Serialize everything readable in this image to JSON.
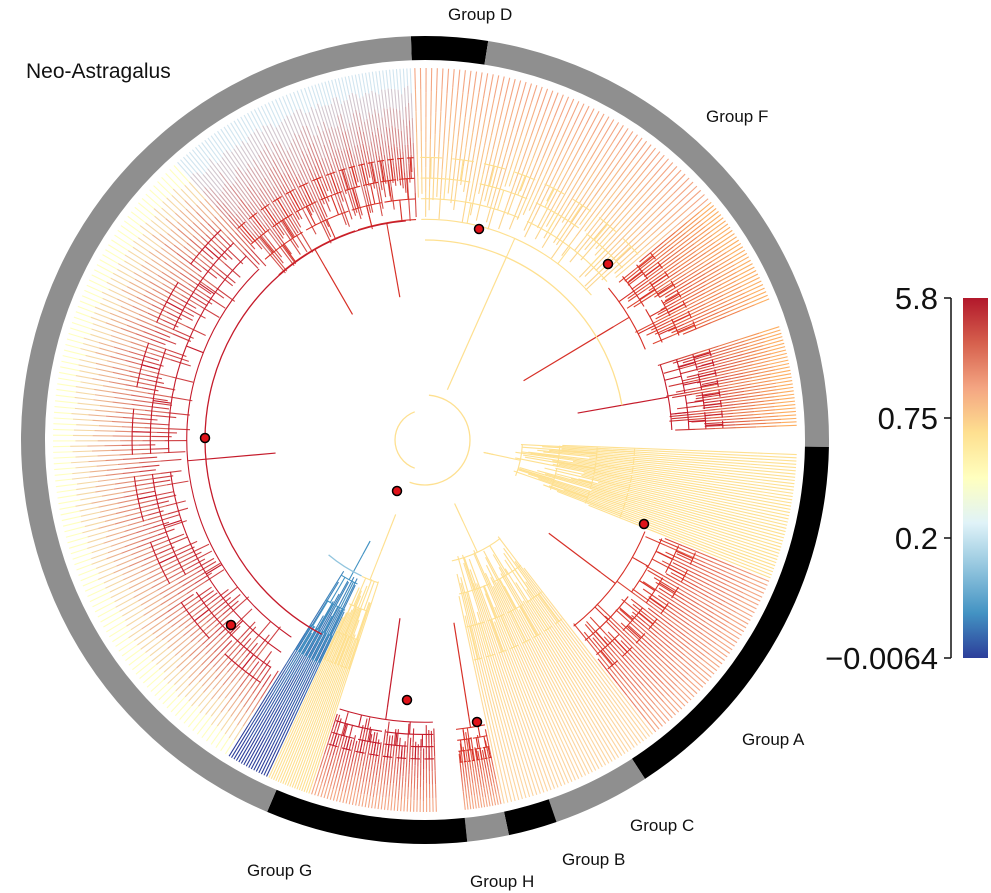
{
  "figure": {
    "clade_label": "Neo-Astragalus",
    "groups": [
      {
        "id": "D",
        "label": "Group D"
      },
      {
        "id": "F",
        "label": "Group F"
      },
      {
        "id": "A",
        "label": "Group A"
      },
      {
        "id": "C",
        "label": "Group C"
      },
      {
        "id": "B",
        "label": "Group B"
      },
      {
        "id": "H",
        "label": "Group H"
      },
      {
        "id": "G",
        "label": "Group G"
      }
    ],
    "legend": {
      "ticks": [
        "5.8",
        "0.75",
        "0.2",
        "−0.0064"
      ],
      "colors": [
        "#b2182b",
        "#d6604d",
        "#f4a582",
        "#fee090",
        "#ffffbf",
        "#e0f3f8",
        "#92c5de",
        "#4393c3",
        "#2c3e9a"
      ]
    },
    "colors": {
      "ring_gray": "#8f8f8f",
      "ring_black": "#000000",
      "node_marker": "#e0131a"
    }
  }
}
